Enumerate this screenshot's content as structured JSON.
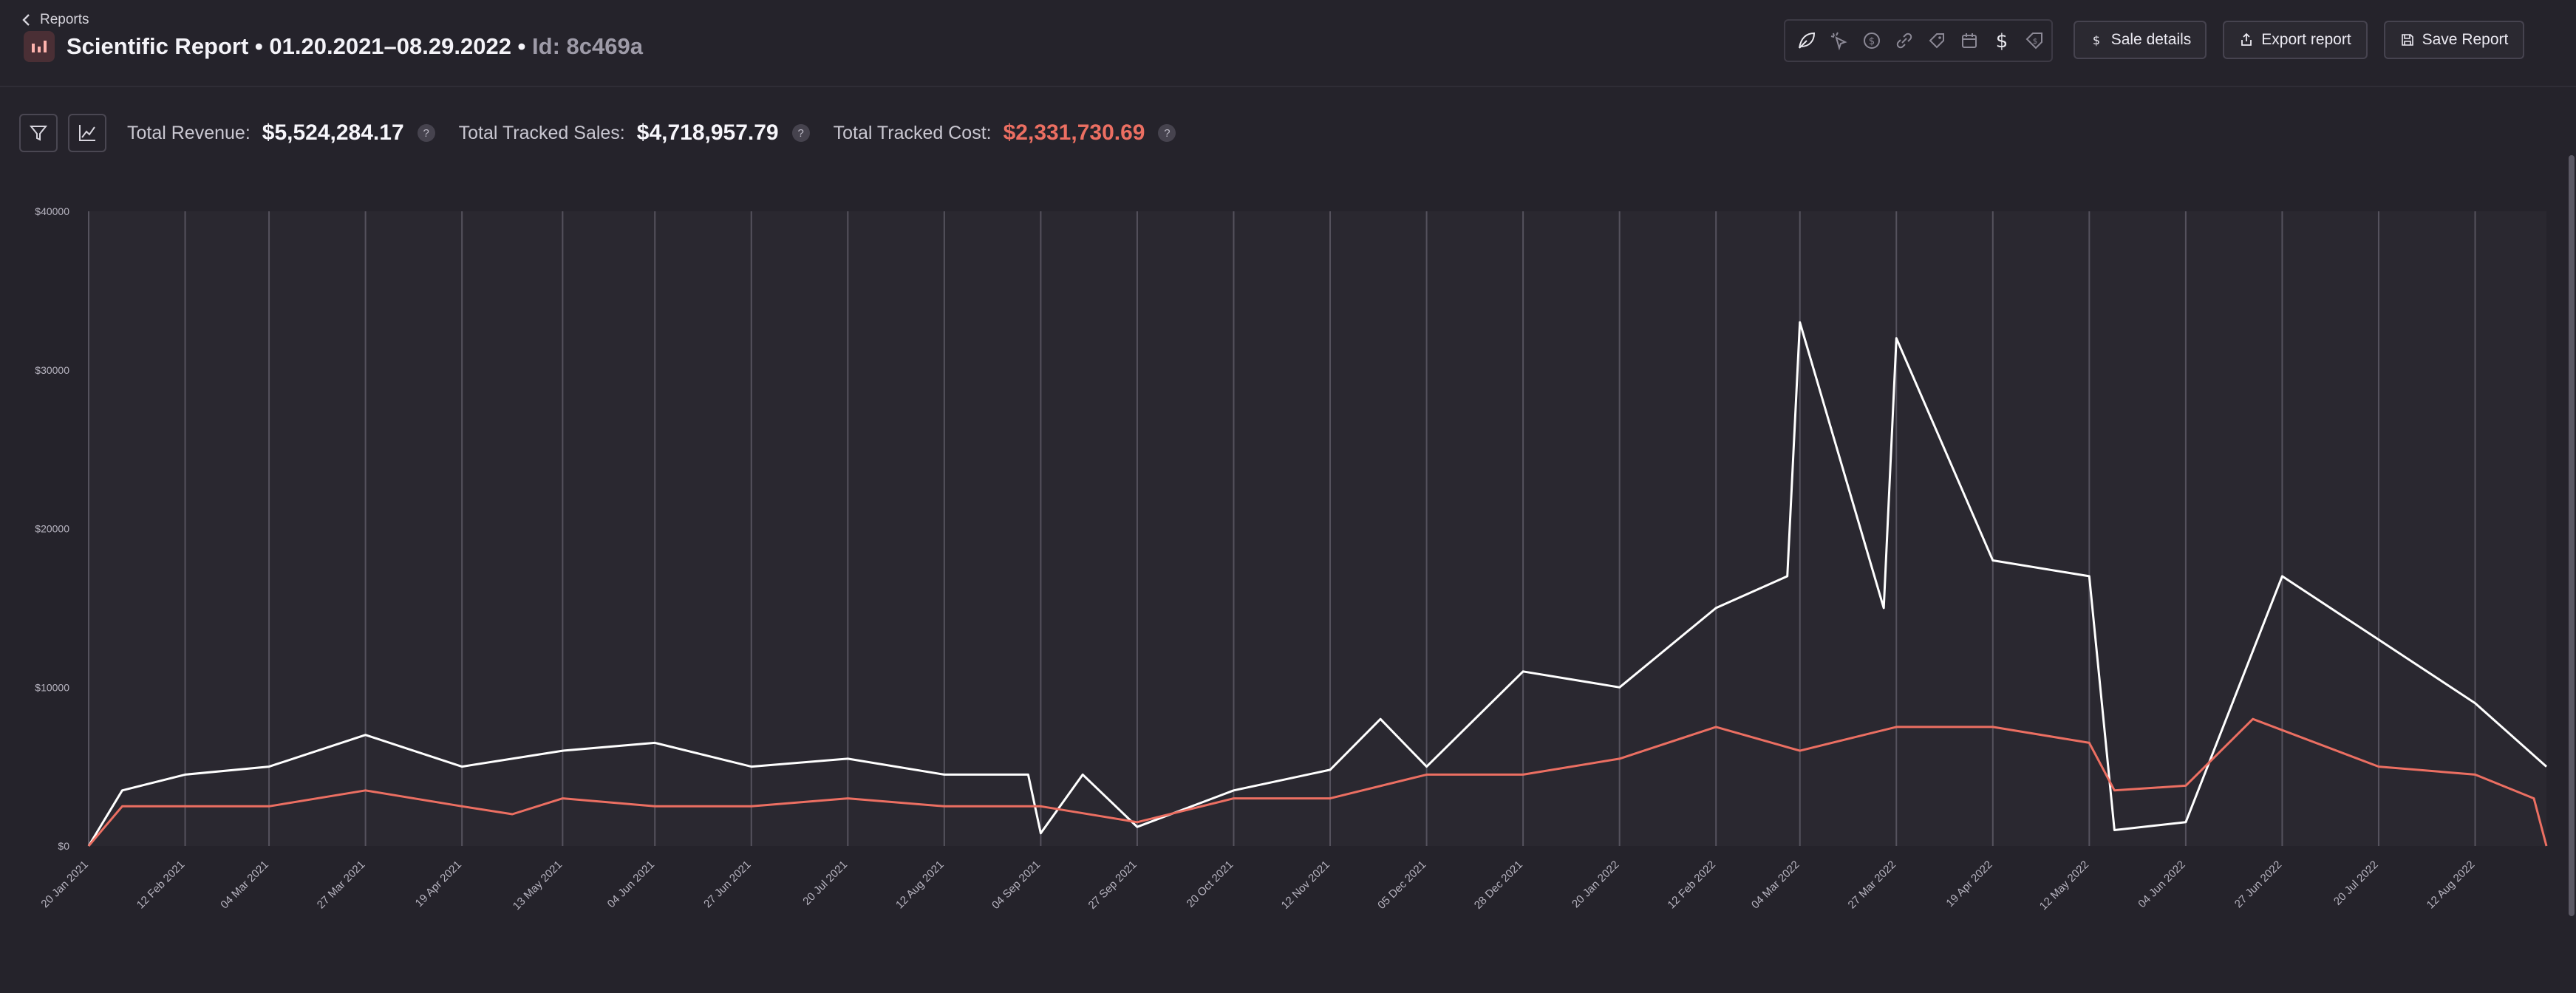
{
  "nav": {
    "back_label": "Reports"
  },
  "header": {
    "title": "Scientific Report • 01.20.2021–08.29.2022 • ",
    "id_text": "Id: 8c469a"
  },
  "toolbar": {
    "tools": [
      "leaf-icon",
      "cursor-sparkle-icon",
      "coin-icon",
      "link-icon",
      "tag-icon",
      "calendar-icon",
      "dollar-icon",
      "price-tag-icon"
    ],
    "sale_details_label": "Sale details",
    "export_label": "Export report",
    "save_label": "Save Report"
  },
  "stats": {
    "revenue_label": "Total Revenue:",
    "revenue_value": "$5,524,284.17",
    "sales_label": "Total Tracked Sales:",
    "sales_value": "$4,718,957.79",
    "cost_label": "Total Tracked Cost:",
    "cost_value": "$2,331,730.69",
    "help_glyph": "?"
  },
  "colors": {
    "sales": "#ffffff",
    "cost": "#ec6f62",
    "grid": "#55525d",
    "accent_cost": "#ec6f62"
  },
  "chart_data": {
    "type": "line",
    "x_start": "2021-01-20",
    "x_end": "2022-08-29",
    "ylim": [
      0,
      40000
    ],
    "y_ticks": [
      "$40000",
      "$30000",
      "$20000",
      "$10000",
      "$0"
    ],
    "x_ticks": [
      "20 Jan 2021",
      "12 Feb 2021",
      "04 Mar 2021",
      "27 Mar 2021",
      "19 Apr 2021",
      "13 May 2021",
      "04 Jun 2021",
      "27 Jun 2021",
      "20 Jul 2021",
      "12 Aug 2021",
      "04 Sep 2021",
      "27 Sep 2021",
      "20 Oct 2021",
      "12 Nov 2021",
      "05 Dec 2021",
      "28 Dec 2021",
      "20 Jan 2022",
      "12 Feb 2022",
      "04 Mar 2022",
      "27 Mar 2022",
      "19 Apr 2022",
      "12 May 2022",
      "04 Jun 2022",
      "27 Jun 2022",
      "20 Jul 2022",
      "12 Aug 2022"
    ],
    "series": [
      {
        "name": "Total Tracked Sales",
        "color": "#ffffff",
        "x": [
          "2021-01-20",
          "2021-01-28",
          "2021-02-12",
          "2021-03-04",
          "2021-03-27",
          "2021-04-19",
          "2021-05-13",
          "2021-06-04",
          "2021-06-27",
          "2021-07-20",
          "2021-08-12",
          "2021-09-01",
          "2021-09-04",
          "2021-09-14",
          "2021-09-27",
          "2021-10-20",
          "2021-11-12",
          "2021-11-24",
          "2021-12-05",
          "2021-12-28",
          "2022-01-20",
          "2022-02-12",
          "2022-03-01",
          "2022-03-04",
          "2022-03-24",
          "2022-03-27",
          "2022-04-19",
          "2022-05-12",
          "2022-05-18",
          "2022-06-04",
          "2022-06-27",
          "2022-07-20",
          "2022-08-12",
          "2022-08-29"
        ],
        "y": [
          0,
          3500,
          4500,
          5000,
          7000,
          5000,
          6000,
          6500,
          5000,
          5500,
          4500,
          4500,
          800,
          4500,
          1200,
          3500,
          4800,
          8000,
          5000,
          11000,
          10000,
          15000,
          17000,
          33000,
          15000,
          32000,
          18000,
          17000,
          1000,
          1500,
          17000,
          13000,
          9000,
          5000
        ]
      },
      {
        "name": "Total Tracked Cost",
        "color": "#ec6f62",
        "x": [
          "2021-01-20",
          "2021-01-28",
          "2021-02-12",
          "2021-03-04",
          "2021-03-27",
          "2021-04-19",
          "2021-05-01",
          "2021-05-13",
          "2021-06-04",
          "2021-06-27",
          "2021-07-20",
          "2021-08-12",
          "2021-09-04",
          "2021-09-27",
          "2021-10-20",
          "2021-11-12",
          "2021-12-05",
          "2021-12-28",
          "2022-01-20",
          "2022-02-12",
          "2022-03-04",
          "2022-03-27",
          "2022-04-19",
          "2022-05-12",
          "2022-05-18",
          "2022-06-04",
          "2022-06-20",
          "2022-07-20",
          "2022-08-12",
          "2022-08-26",
          "2022-08-29"
        ],
        "y": [
          0,
          2500,
          2500,
          2500,
          3500,
          2500,
          2000,
          3000,
          2500,
          2500,
          3000,
          2500,
          2500,
          1500,
          3000,
          3000,
          4500,
          4500,
          5500,
          7500,
          6000,
          7500,
          7500,
          6500,
          3500,
          3800,
          8000,
          5000,
          4500,
          3000,
          0
        ]
      }
    ]
  }
}
